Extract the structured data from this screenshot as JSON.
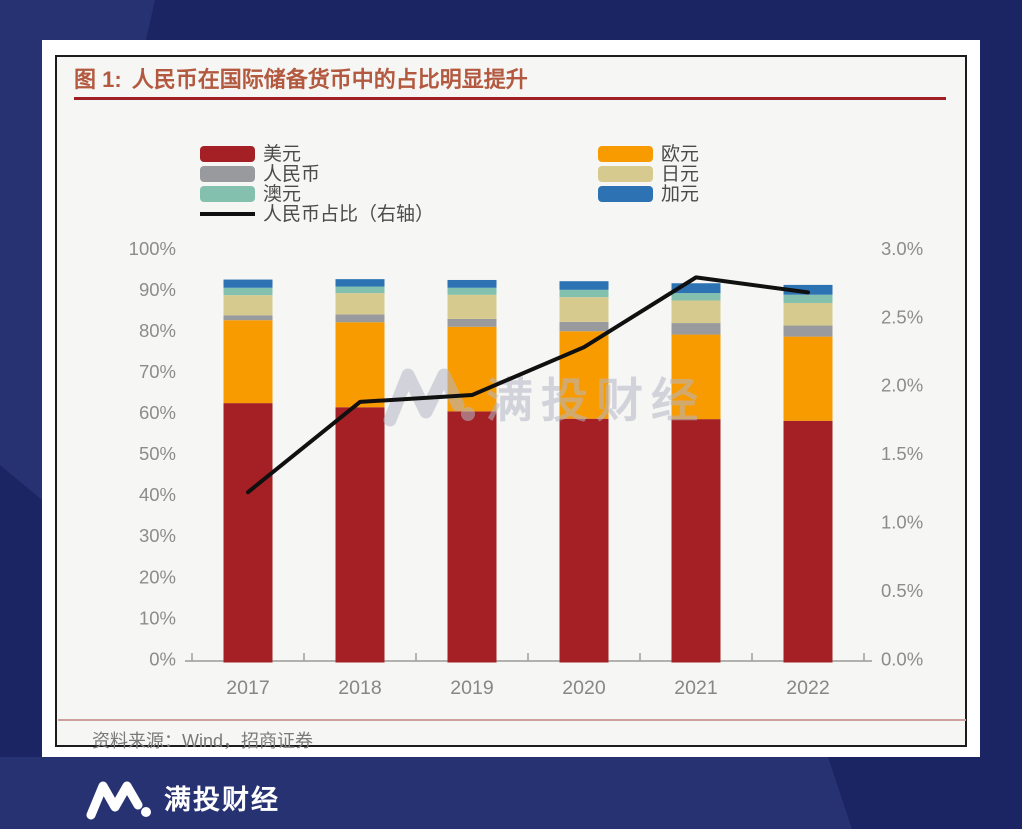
{
  "figure": {
    "label": "图 1:",
    "title": "人民币在国际储备货币中的占比明显提升",
    "source": "资料来源：Wind，招商证券"
  },
  "colors": {
    "usd": "#a42025",
    "eur": "#f89b00",
    "rmb": "#999a9e",
    "jpy": "#d7ca8e",
    "aud": "#84c0ae",
    "cad": "#2d73b4",
    "line": "#101010",
    "bg_dark": "#1b2564",
    "bg_light": "#273272",
    "title": "#b2593f",
    "underline": "#9e2024",
    "axis_text": "#8c8c8c",
    "watermark": "#b6b8c6"
  },
  "legend": {
    "left": [
      {
        "id": "usd",
        "name": "美元",
        "type": "box",
        "color": "#a42025"
      },
      {
        "id": "rmb",
        "name": "人民币",
        "type": "box",
        "color": "#999a9e"
      },
      {
        "id": "aud",
        "name": "澳元",
        "type": "box",
        "color": "#84c0ae"
      },
      {
        "id": "rmb-share-line",
        "name": "人民币占比（右轴）",
        "type": "line",
        "color": "#101010"
      }
    ],
    "right": [
      {
        "id": "eur",
        "name": "欧元",
        "type": "box",
        "color": "#f89b00"
      },
      {
        "id": "jpy",
        "name": "日元",
        "type": "box",
        "color": "#d7ca8e"
      },
      {
        "id": "cad",
        "name": "加元",
        "type": "box",
        "color": "#2d73b4"
      }
    ]
  },
  "chart_data": {
    "type": "bar",
    "subtype": "stacked-bars-with-line",
    "title": "人民币在国际储备货币中的占比明显提升",
    "categories": [
      "2017",
      "2018",
      "2019",
      "2020",
      "2021",
      "2022"
    ],
    "series": [
      {
        "id": "usd",
        "name": "美元",
        "color": "#a42025",
        "values": [
          62.7,
          61.7,
          60.7,
          58.9,
          58.8,
          58.4
        ]
      },
      {
        "id": "eur",
        "name": "欧元",
        "color": "#f89b00",
        "values": [
          20.2,
          20.7,
          20.6,
          21.3,
          20.6,
          20.5
        ]
      },
      {
        "id": "rmb",
        "name": "人民币",
        "color": "#999a9e",
        "values": [
          1.2,
          1.9,
          1.9,
          2.3,
          2.8,
          2.7
        ]
      },
      {
        "id": "jpy",
        "name": "日元",
        "color": "#d7ca8e",
        "values": [
          4.9,
          5.2,
          5.9,
          6.0,
          5.5,
          5.5
        ]
      },
      {
        "id": "aud",
        "name": "澳元",
        "color": "#84c0ae",
        "values": [
          1.8,
          1.6,
          1.7,
          1.8,
          1.8,
          2.0
        ]
      },
      {
        "id": "cad",
        "name": "加元",
        "color": "#2d73b4",
        "values": [
          2.0,
          1.8,
          1.9,
          2.1,
          2.4,
          2.4
        ]
      }
    ],
    "line_series": {
      "id": "rmb-share-line",
      "name": "人民币占比（右轴）",
      "axis": "right",
      "color": "#101010",
      "values": [
        1.23,
        1.89,
        1.94,
        2.29,
        2.8,
        2.69
      ]
    },
    "left_axis": {
      "min": 0,
      "max": 100,
      "ticks": [
        "100%",
        "90%",
        "80%",
        "70%",
        "60%",
        "50%",
        "40%",
        "30%",
        "20%",
        "10%",
        "0%"
      ]
    },
    "right_axis": {
      "min": 0,
      "max": 3.0,
      "ticks": [
        "3.0%",
        "2.5%",
        "2.0%",
        "1.5%",
        "1.0%",
        "0.5%",
        "0.0%"
      ]
    },
    "grid": false,
    "legend_position": "top"
  },
  "watermark": {
    "text": "满投财经"
  },
  "footer": {
    "brand": "满投财经"
  }
}
